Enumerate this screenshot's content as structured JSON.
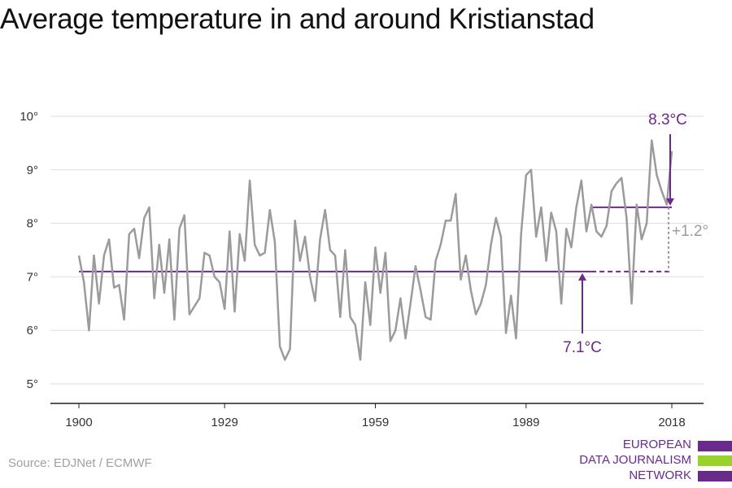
{
  "title": "Average temperature in and around Kristianstad",
  "source": "Source: EDJNet / ECMWF",
  "logo": {
    "lines": [
      "EUROPEAN",
      "DATA JOURNALISM",
      "NETWORK"
    ],
    "colors": [
      "#6a2a8c",
      "#9bd12b",
      "#6a2a8c"
    ]
  },
  "colors": {
    "line": "#9b9b9b",
    "accent": "#6a2a8c",
    "grid": "#dddddd",
    "axis": "#222222",
    "diff": "#9b9b9b"
  },
  "chart_data": {
    "type": "line",
    "title": "Average temperature in and around Kristianstad",
    "xlabel": "",
    "ylabel": "",
    "xlim": [
      1900,
      2018
    ],
    "ylim": [
      5,
      10
    ],
    "grid": true,
    "x_ticks": [
      1900,
      1929,
      1959,
      1989,
      2018
    ],
    "y_ticks": [
      5,
      6,
      7,
      8,
      9,
      10
    ],
    "y_tick_labels": [
      "5°",
      "6°",
      "7°",
      "8°",
      "9°",
      "10°"
    ],
    "series": [
      {
        "x": [
          1900,
          1901,
          1902,
          1903,
          1904,
          1905,
          1906,
          1907,
          1908,
          1909,
          1910,
          1911,
          1912,
          1913,
          1914,
          1915,
          1916,
          1917,
          1918,
          1919,
          1920,
          1921,
          1922,
          1923,
          1924,
          1925,
          1926,
          1927,
          1928,
          1929,
          1930,
          1931,
          1932,
          1933,
          1934,
          1935,
          1936,
          1937,
          1938,
          1939,
          1940,
          1941,
          1942,
          1943,
          1944,
          1945,
          1946,
          1947,
          1948,
          1949,
          1950,
          1951,
          1952,
          1953,
          1954,
          1955,
          1956,
          1957,
          1958,
          1959,
          1960,
          1961,
          1962,
          1963,
          1964,
          1965,
          1966,
          1967,
          1968,
          1969,
          1970,
          1971,
          1972,
          1973,
          1974,
          1975,
          1976,
          1977,
          1978,
          1979,
          1980,
          1981,
          1982,
          1983,
          1984,
          1985,
          1986,
          1987,
          1988,
          1989,
          1990,
          1991,
          1992,
          1993,
          1994,
          1995,
          1996,
          1997,
          1998,
          1999,
          2000,
          2001,
          2002,
          2003,
          2004,
          2005,
          2006,
          2007,
          2008,
          2009,
          2010,
          2011,
          2012,
          2013,
          2014,
          2015,
          2016,
          2017,
          2018
        ],
        "y": [
          7.4,
          6.9,
          6.0,
          7.4,
          6.5,
          7.4,
          7.7,
          6.8,
          6.85,
          6.2,
          7.8,
          7.9,
          7.35,
          8.1,
          8.3,
          6.6,
          7.6,
          6.7,
          7.7,
          6.2,
          7.9,
          8.15,
          6.3,
          6.45,
          6.6,
          7.45,
          7.4,
          7.0,
          6.9,
          6.4,
          7.85,
          6.35,
          7.8,
          7.3,
          8.8,
          7.6,
          7.4,
          7.45,
          8.25,
          7.65,
          5.7,
          5.45,
          5.65,
          8.05,
          7.3,
          7.75,
          7.0,
          6.55,
          7.7,
          8.25,
          7.5,
          7.4,
          6.25,
          7.5,
          6.25,
          6.1,
          5.45,
          6.9,
          6.1,
          7.55,
          6.7,
          7.45,
          5.8,
          6.0,
          6.6,
          5.85,
          6.5,
          7.2,
          6.75,
          6.25,
          6.2,
          7.3,
          7.6,
          8.05,
          8.05,
          8.55,
          6.95,
          7.4,
          6.75,
          6.3,
          6.5,
          6.85,
          7.6,
          8.1,
          7.75,
          5.95,
          6.65,
          5.85,
          7.8,
          8.9,
          9.0,
          7.75,
          8.3,
          7.3,
          8.2,
          7.85,
          6.5,
          7.9,
          7.55,
          8.3,
          8.8,
          7.85,
          8.35,
          7.85,
          7.75,
          7.95,
          8.6,
          8.75,
          8.85,
          8.1,
          6.5,
          8.35,
          7.7,
          8.0,
          9.55,
          8.9,
          8.6,
          8.35,
          9.35
        ]
      }
    ],
    "annotations": {
      "baseline": {
        "value": 7.1,
        "label": "7.1°C",
        "from": 1900,
        "to": 2002,
        "dashed_to": 2018
      },
      "recent": {
        "value": 8.3,
        "label": "8.3°C",
        "from": 2002,
        "to": 2018
      },
      "difference_label": "+1.2°"
    }
  }
}
